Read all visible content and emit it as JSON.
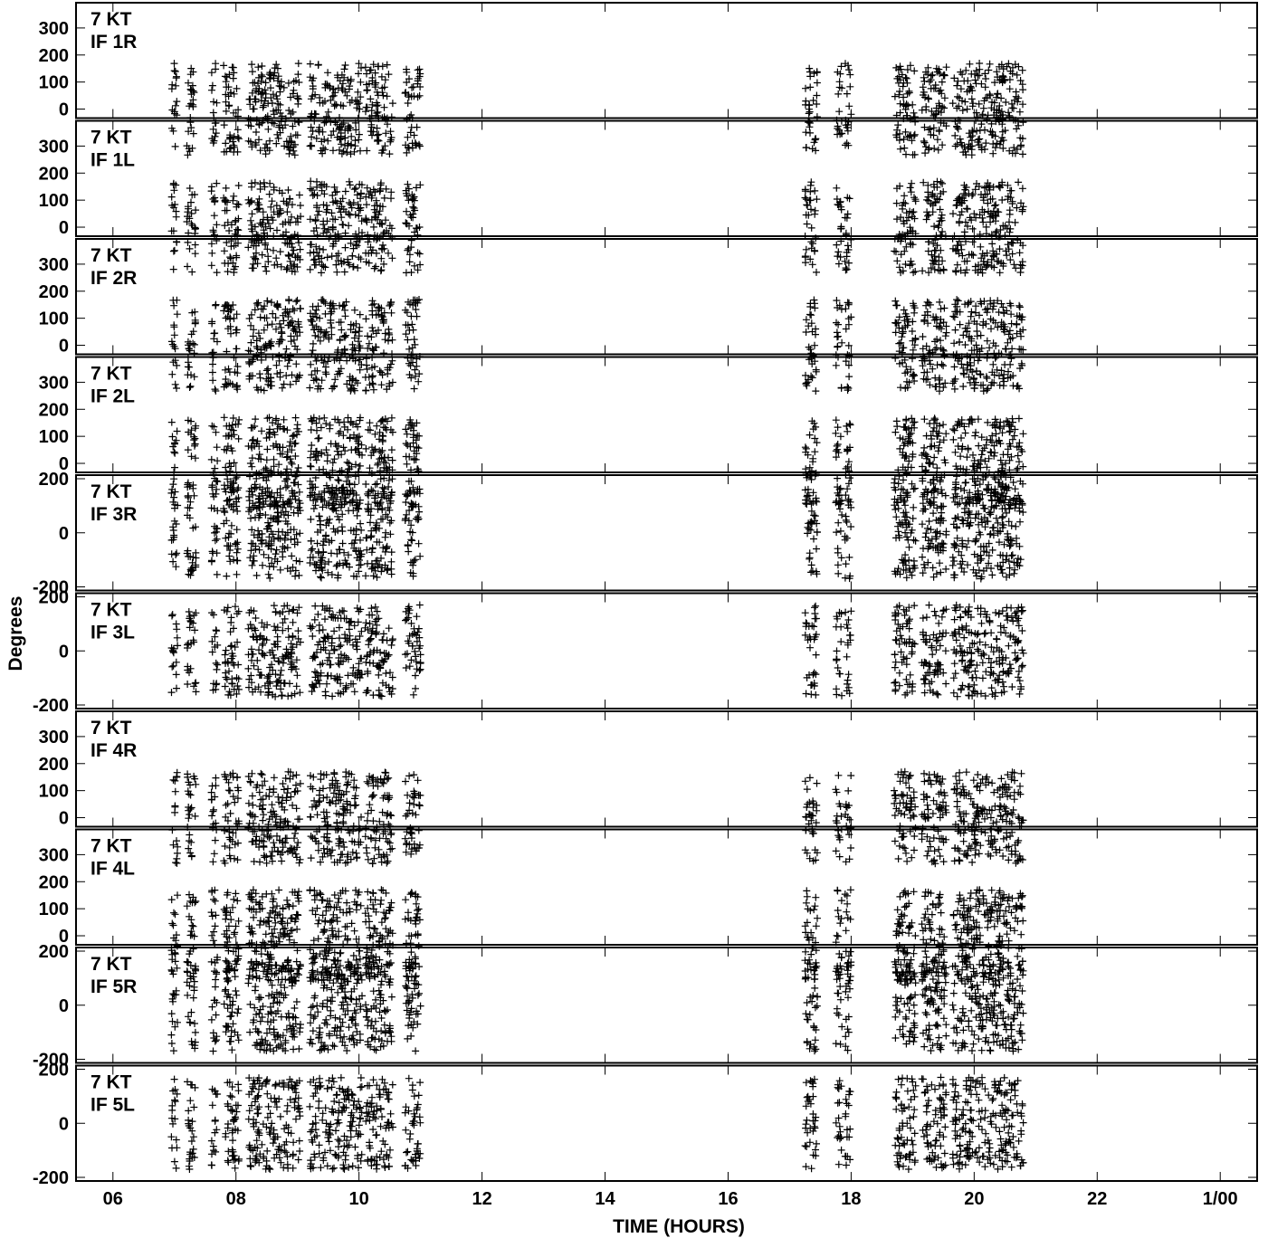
{
  "chart_data": {
    "type": "scatter",
    "marker": "plus",
    "xlabel": "TIME (HOURS)",
    "ylabel": "Degrees",
    "xlim": [
      5.4,
      24.6
    ],
    "x_ticks": [
      {
        "value": 6,
        "label": "06"
      },
      {
        "value": 8,
        "label": "08"
      },
      {
        "value": 10,
        "label": "10"
      },
      {
        "value": 12,
        "label": "12"
      },
      {
        "value": 14,
        "label": "14"
      },
      {
        "value": 16,
        "label": "16"
      },
      {
        "value": 18,
        "label": "18"
      },
      {
        "value": 20,
        "label": "20"
      },
      {
        "value": 22,
        "label": "22"
      },
      {
        "value": 24,
        "label": "1/00"
      }
    ],
    "observation_windows_hours": [
      [
        6.95,
        7.05
      ],
      [
        7.2,
        7.35
      ],
      [
        7.6,
        7.7
      ],
      [
        7.8,
        8.05
      ],
      [
        8.2,
        9.05
      ],
      [
        9.2,
        10.05
      ],
      [
        10.1,
        10.55
      ],
      [
        10.75,
        11.0
      ],
      [
        17.25,
        17.45
      ],
      [
        17.75,
        17.85
      ],
      [
        17.9,
        18.0
      ],
      [
        18.7,
        19.05
      ],
      [
        19.15,
        19.55
      ],
      [
        19.65,
        20.8
      ]
    ],
    "panels": [
      {
        "label_line1": "7 KT",
        "label_line2": "IF 1R",
        "ylim": [
          -20,
          380
        ],
        "yticks": [
          0,
          100,
          200,
          300
        ]
      },
      {
        "label_line1": "7 KT",
        "label_line2": "IF 1L",
        "ylim": [
          -20,
          380
        ],
        "yticks": [
          0,
          100,
          200,
          300
        ]
      },
      {
        "label_line1": "7 KT",
        "label_line2": "IF 2R",
        "ylim": [
          -20,
          380
        ],
        "yticks": [
          0,
          100,
          200,
          300
        ]
      },
      {
        "label_line1": "7 KT",
        "label_line2": "IF 2L",
        "ylim": [
          -20,
          380
        ],
        "yticks": [
          0,
          100,
          200,
          300
        ]
      },
      {
        "label_line1": "7 KT",
        "label_line2": "IF 3R",
        "ylim": [
          -200,
          200
        ],
        "yticks": [
          -200,
          0,
          200
        ]
      },
      {
        "label_line1": "7 KT",
        "label_line2": "IF 3L",
        "ylim": [
          -200,
          200
        ],
        "yticks": [
          -200,
          0,
          200
        ]
      },
      {
        "label_line1": "7 KT",
        "label_line2": "IF 4R",
        "ylim": [
          -20,
          380
        ],
        "yticks": [
          0,
          100,
          200,
          300
        ]
      },
      {
        "label_line1": "7 KT",
        "label_line2": "IF 4L",
        "ylim": [
          -20,
          380
        ],
        "yticks": [
          0,
          100,
          200,
          300
        ]
      },
      {
        "label_line1": "7 KT",
        "label_line2": "IF 5R",
        "ylim": [
          -200,
          200
        ],
        "yticks": [
          -200,
          0,
          200
        ]
      },
      {
        "label_line1": "7 KT",
        "label_line2": "IF 5L",
        "ylim": [
          -200,
          200
        ],
        "yticks": [
          -200,
          0,
          200
        ]
      }
    ]
  }
}
